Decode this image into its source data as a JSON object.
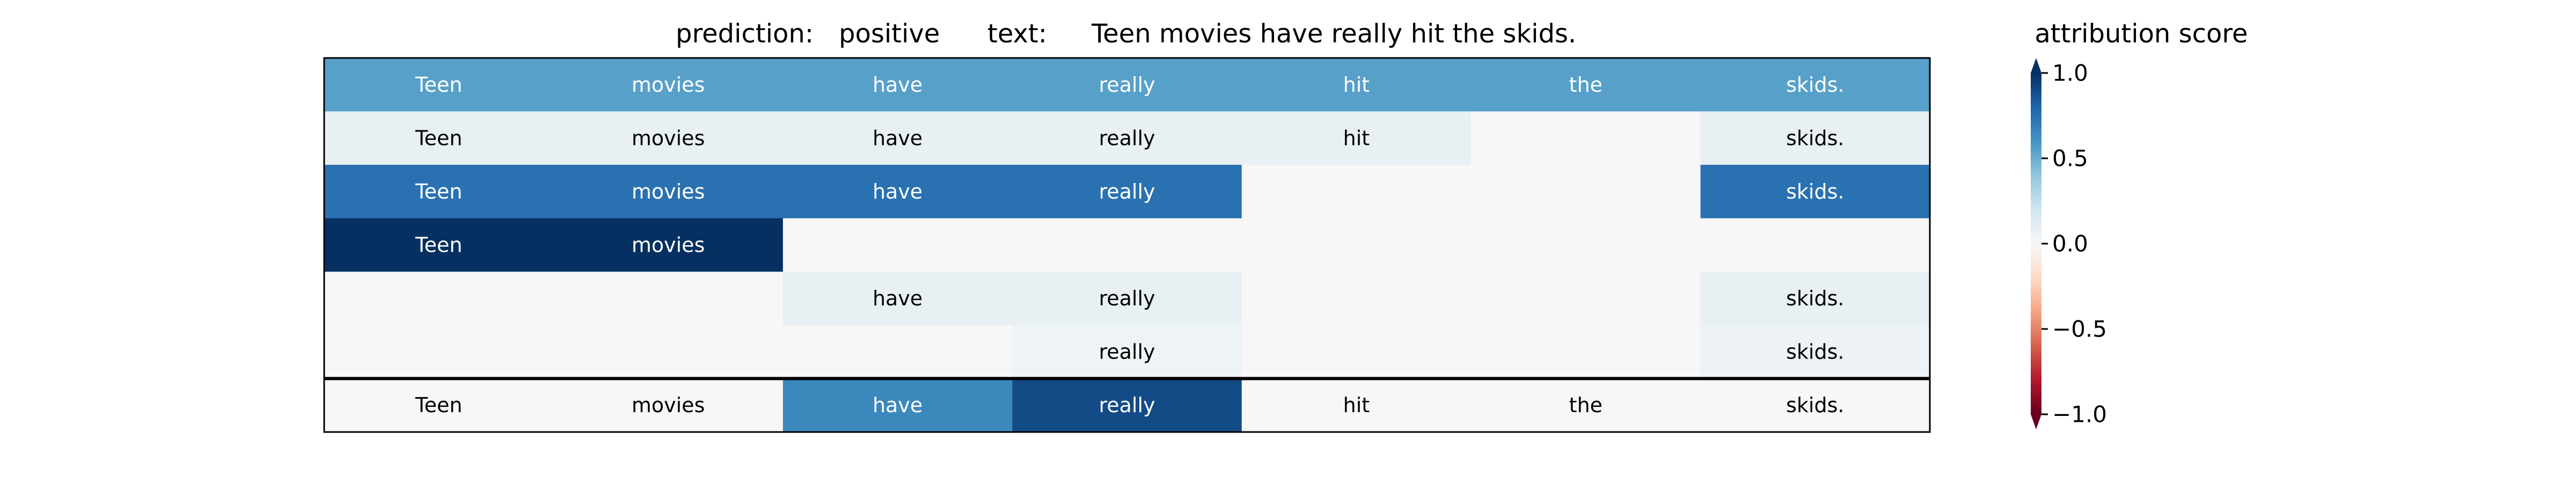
{
  "header": {
    "prediction_label": "prediction:",
    "prediction_value": "positive",
    "text_label": "text:",
    "text_value": "Teen movies have really hit the skids."
  },
  "colorbar": {
    "title": "attribution score",
    "ticks": [
      "1.0",
      "0.5",
      "0.0",
      "−0.5",
      "−1.0"
    ],
    "min": -1.0,
    "max": 1.0
  },
  "chart_data": {
    "type": "heatmap",
    "title": "prediction:  positive     text:  Teen movies have really hit the skids.",
    "columns": [
      "Teen",
      "movies",
      "have",
      "really",
      "hit",
      "the",
      "skids."
    ],
    "rows": [
      [
        {
          "word": "Teen",
          "value": 0.55
        },
        {
          "word": "movies",
          "value": 0.55
        },
        {
          "word": "have",
          "value": 0.55
        },
        {
          "word": "really",
          "value": 0.55
        },
        {
          "word": "hit",
          "value": 0.55
        },
        {
          "word": "the",
          "value": 0.55
        },
        {
          "word": "skids.",
          "value": 0.55
        }
      ],
      [
        {
          "word": "Teen",
          "value": 0.08
        },
        {
          "word": "movies",
          "value": 0.08
        },
        {
          "word": "have",
          "value": 0.08
        },
        {
          "word": "really",
          "value": 0.08
        },
        {
          "word": "hit",
          "value": 0.08
        },
        {
          "word": "",
          "value": 0.0
        },
        {
          "word": "skids.",
          "value": 0.08
        }
      ],
      [
        {
          "word": "Teen",
          "value": 0.75
        },
        {
          "word": "movies",
          "value": 0.75
        },
        {
          "word": "have",
          "value": 0.75
        },
        {
          "word": "really",
          "value": 0.75
        },
        {
          "word": "",
          "value": 0.0
        },
        {
          "word": "",
          "value": 0.0
        },
        {
          "word": "skids.",
          "value": 0.75
        }
      ],
      [
        {
          "word": "Teen",
          "value": 1.0
        },
        {
          "word": "movies",
          "value": 1.0
        },
        {
          "word": "",
          "value": 0.0
        },
        {
          "word": "",
          "value": 0.0
        },
        {
          "word": "",
          "value": 0.0
        },
        {
          "word": "",
          "value": 0.0
        },
        {
          "word": "",
          "value": 0.0
        }
      ],
      [
        {
          "word": "",
          "value": 0.0
        },
        {
          "word": "",
          "value": 0.0
        },
        {
          "word": "have",
          "value": 0.08
        },
        {
          "word": "really",
          "value": 0.08
        },
        {
          "word": "",
          "value": 0.0
        },
        {
          "word": "",
          "value": 0.0
        },
        {
          "word": "skids.",
          "value": 0.08
        }
      ],
      [
        {
          "word": "",
          "value": 0.0
        },
        {
          "word": "",
          "value": 0.0
        },
        {
          "word": "",
          "value": 0.0
        },
        {
          "word": "really",
          "value": 0.05
        },
        {
          "word": "",
          "value": 0.0
        },
        {
          "word": "",
          "value": 0.0
        },
        {
          "word": "skids.",
          "value": 0.06
        }
      ],
      [
        {
          "word": "Teen",
          "value": 0.0
        },
        {
          "word": "movies",
          "value": 0.0
        },
        {
          "word": "have",
          "value": 0.65
        },
        {
          "word": "really",
          "value": 0.9
        },
        {
          "word": "hit",
          "value": 0.0
        },
        {
          "word": "the",
          "value": 0.0
        },
        {
          "word": "skids.",
          "value": 0.0
        }
      ]
    ],
    "colormap": "RdBu",
    "vmin": -1.0,
    "vmax": 1.0,
    "separator_before_row": 6
  }
}
